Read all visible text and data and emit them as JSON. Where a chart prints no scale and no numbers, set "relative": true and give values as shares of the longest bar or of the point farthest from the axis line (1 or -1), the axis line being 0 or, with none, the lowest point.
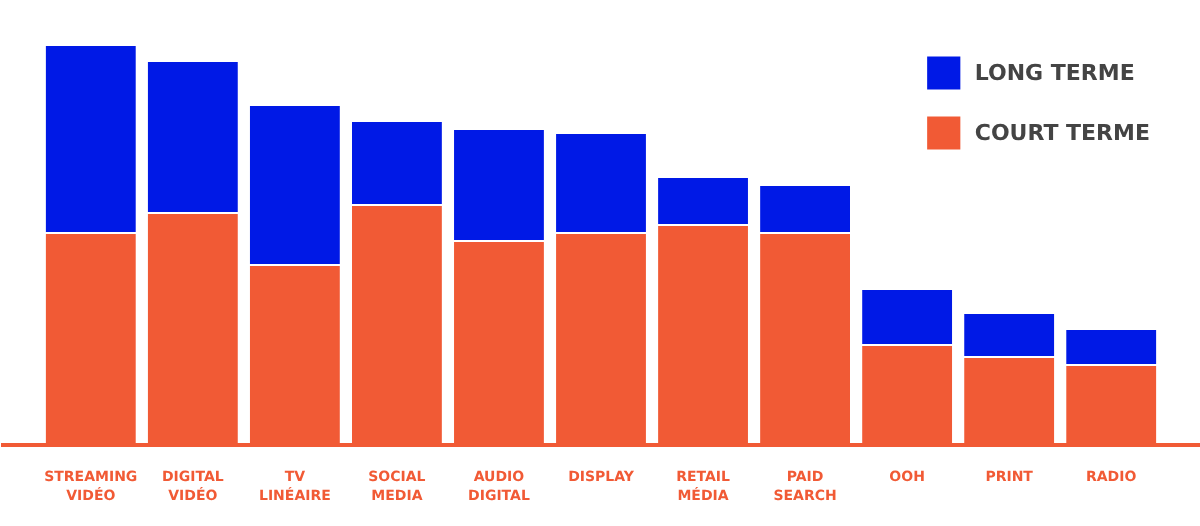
{
  "chart_data": {
    "type": "bar",
    "stacked": true,
    "relative": true,
    "legend": "top right",
    "grid": false,
    "categories": [
      "STREAMING VIDÉO",
      "DIGITAL VIDÉO",
      "TV LINÉAIRE",
      "SOCIAL MEDIA",
      "AUDIO DIGITAL",
      "DISPLAY",
      "RETAIL MÉDIA",
      "PAID SEARCH",
      "OOH",
      "PRINT",
      "RADIO"
    ],
    "series": [
      {
        "name": "COURT TERME",
        "color": "#f15a35",
        "values": [
          0.53,
          0.58,
          0.45,
          0.6,
          0.51,
          0.53,
          0.55,
          0.53,
          0.25,
          0.22,
          0.2
        ]
      },
      {
        "name": "LONG TERME",
        "color": "#0019e6",
        "values": [
          0.47,
          0.38,
          0.4,
          0.21,
          0.28,
          0.25,
          0.12,
          0.12,
          0.14,
          0.11,
          0.09
        ]
      }
    ]
  }
}
